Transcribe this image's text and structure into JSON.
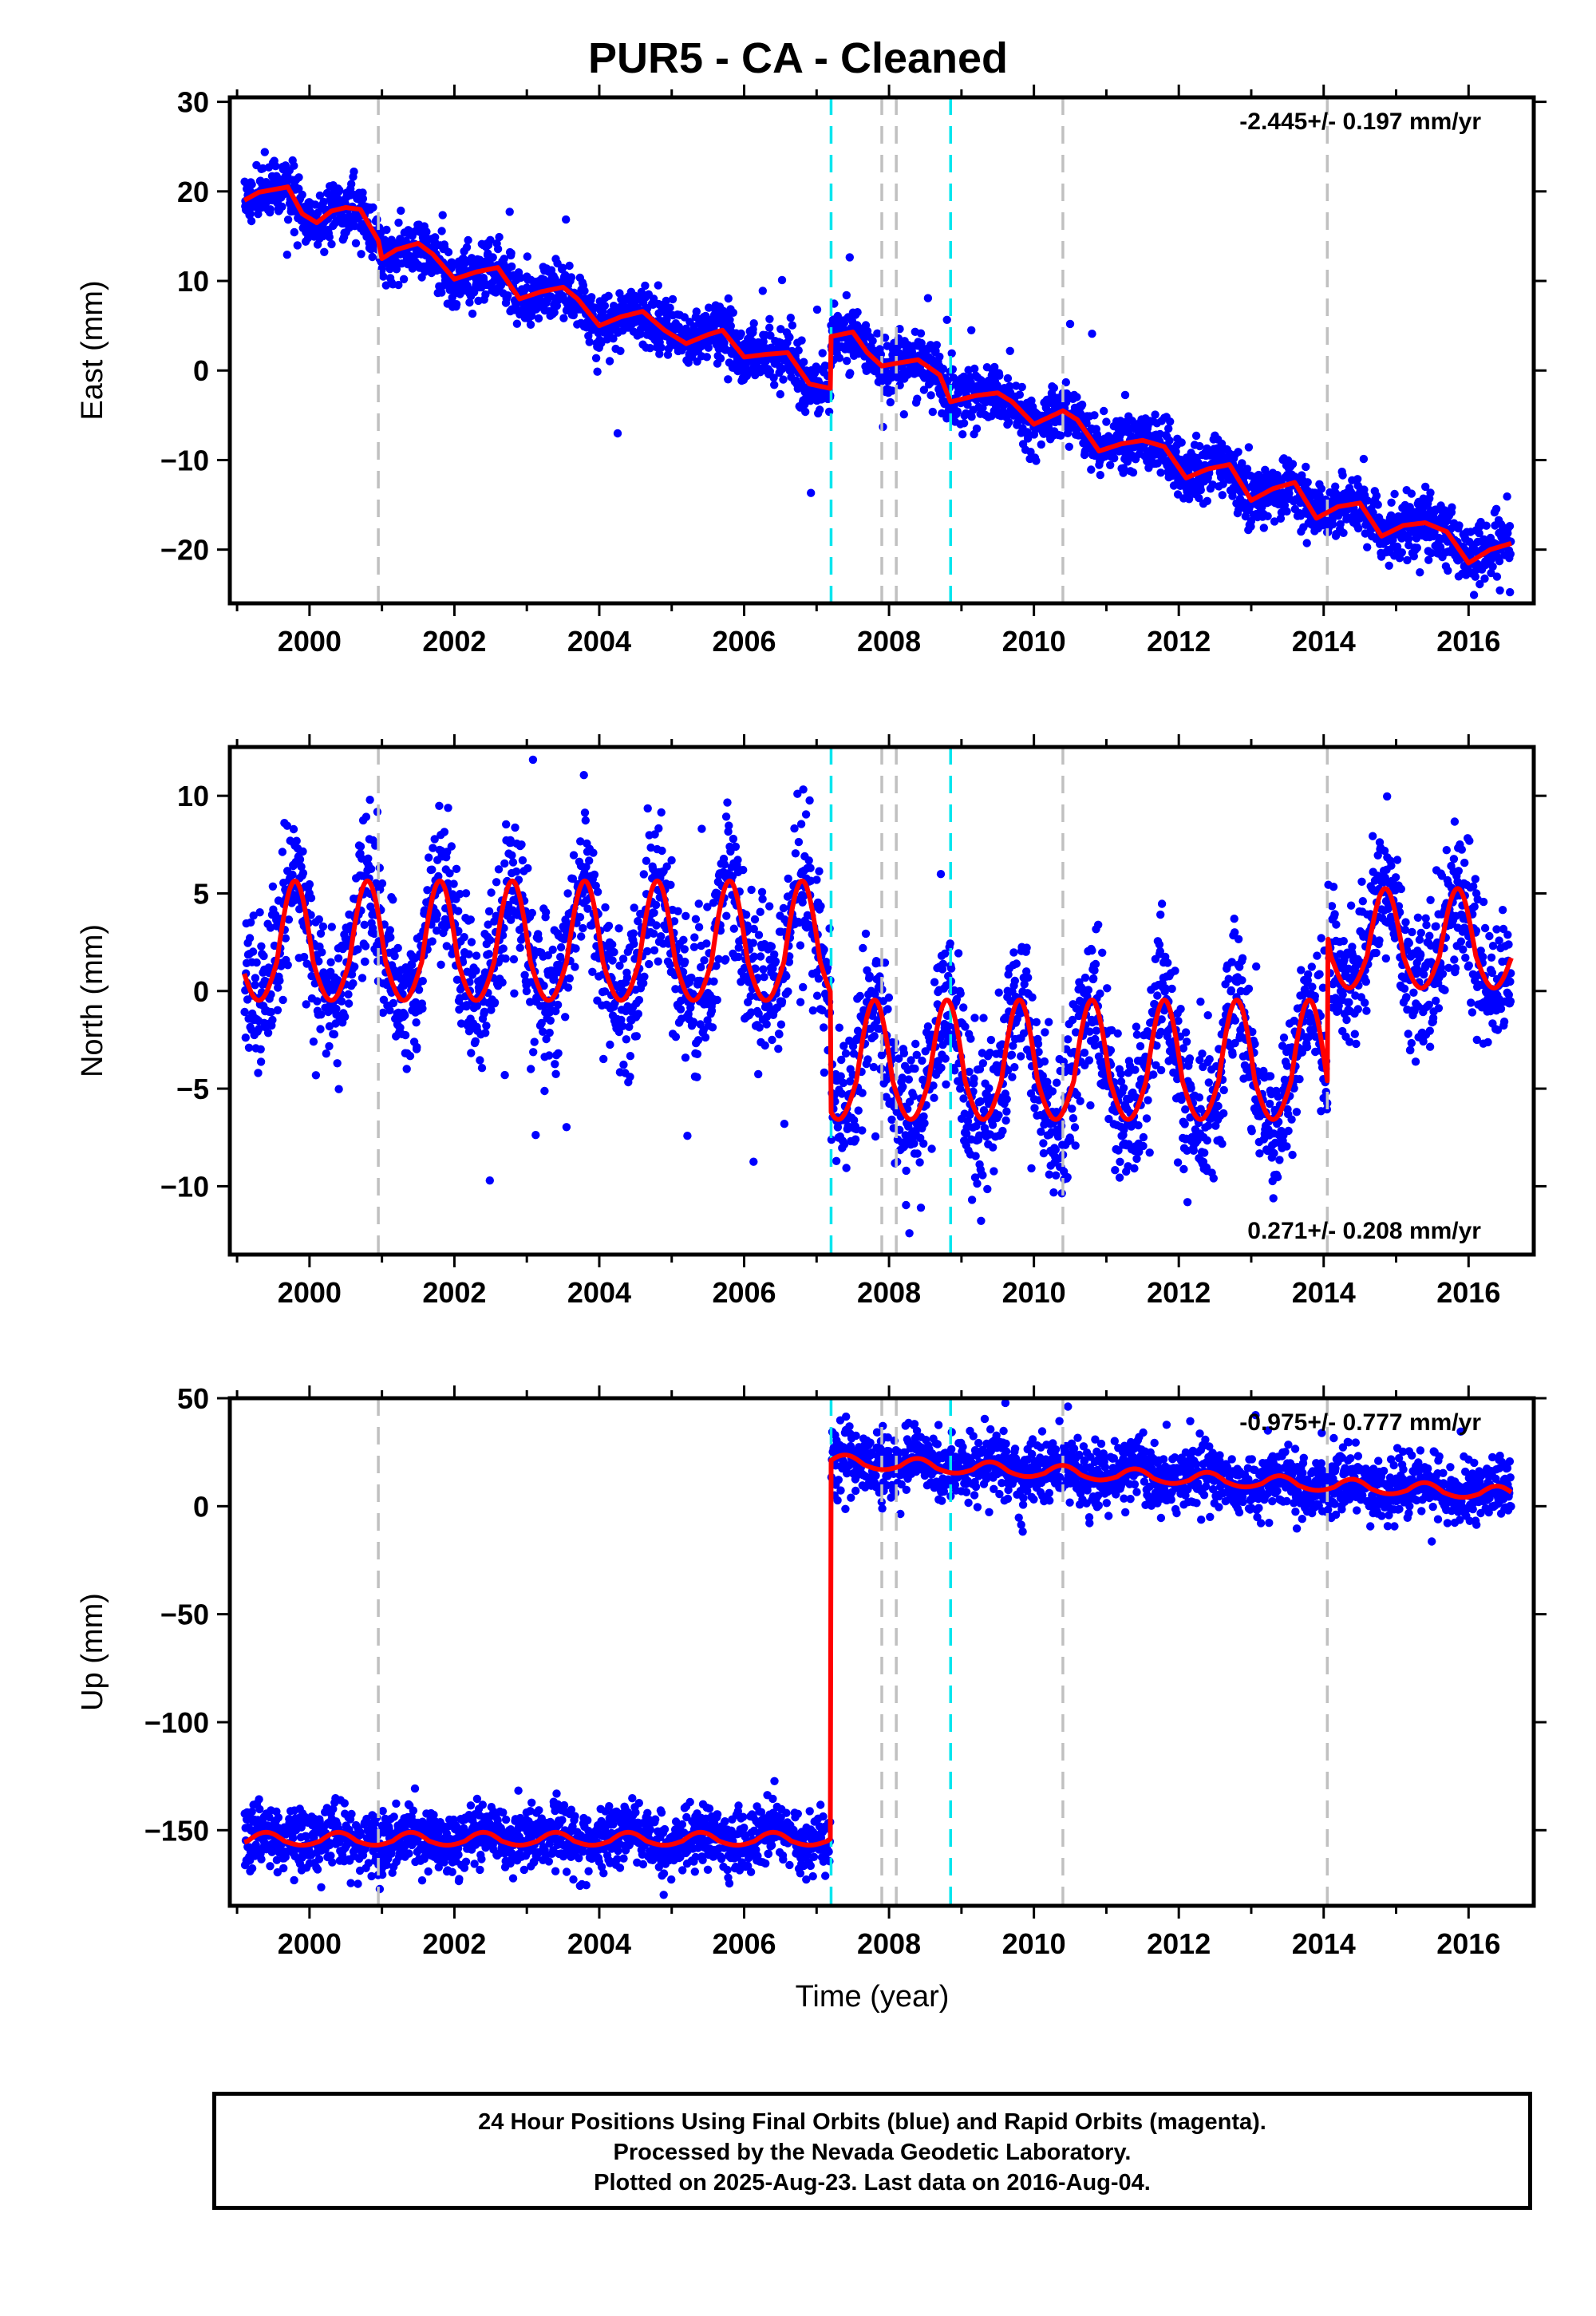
{
  "title": "PUR5  - CA - Cleaned",
  "xlabel": "Time (year)",
  "colors": {
    "data": "#0000ff",
    "model": "#ff0000",
    "offset_equipment": "#c0c0c0",
    "offset_event": "#00e5ee",
    "axes": "#000000"
  },
  "footer": {
    "line1": "24 Hour Positions Using Final Orbits (blue) and Rapid Orbits (magenta).",
    "line2": "Processed by the Nevada Geodetic Laboratory.",
    "line3": "Plotted on 2025-Aug-23. Last data on 2016-Aug-04."
  },
  "chart_data": [
    {
      "type": "scatter",
      "ylabel": "East (mm)",
      "rate_label": "-2.445+/- 0.197 mm/yr",
      "xlim": [
        1998.9,
        2016.9
      ],
      "ylim": [
        -26,
        30.5
      ],
      "xticks": [
        2000,
        2002,
        2004,
        2006,
        2008,
        2010,
        2012,
        2014,
        2016
      ],
      "yticks": [
        -20,
        -10,
        0,
        10,
        20,
        30
      ],
      "offsets_gray": [
        2000.95,
        2007.9,
        2008.1,
        2010.4,
        2014.05
      ],
      "offsets_cyan": [
        2007.2,
        2008.85
      ],
      "model": {
        "x": [
          1999.1,
          1999.3,
          1999.5,
          1999.7,
          1999.9,
          2000.1,
          2000.3,
          2000.5,
          2000.7,
          2000.95,
          2001.0,
          2001.2,
          2001.5,
          2001.7,
          2002.0,
          2002.3,
          2002.6,
          2002.9,
          2003.2,
          2003.5,
          2003.7,
          2004.0,
          2004.3,
          2004.6,
          2004.9,
          2005.2,
          2005.5,
          2005.7,
          2006.0,
          2006.3,
          2006.6,
          2006.9,
          2007.19,
          2007.2,
          2007.5,
          2007.7,
          2007.9,
          2008.1,
          2008.4,
          2008.7,
          2008.85,
          2009.2,
          2009.5,
          2009.7,
          2010.0,
          2010.4,
          2010.6,
          2010.9,
          2011.2,
          2011.5,
          2011.8,
          2012.1,
          2012.4,
          2012.7,
          2013.0,
          2013.3,
          2013.6,
          2013.9,
          2014.2,
          2014.5,
          2014.8,
          2015.1,
          2015.4,
          2015.7,
          2016.0,
          2016.3,
          2016.59
        ],
        "y": [
          19.0,
          19.9,
          20.2,
          20.5,
          17.5,
          16.5,
          17.8,
          18.2,
          18.0,
          14.5,
          12.5,
          13.5,
          14.2,
          13.0,
          10.2,
          11.0,
          11.5,
          8.0,
          8.8,
          9.3,
          8.0,
          5.0,
          6.0,
          6.6,
          4.5,
          3.0,
          4.0,
          4.5,
          1.5,
          1.8,
          2.0,
          -1.5,
          -2.0,
          3.8,
          4.3,
          2.0,
          0.5,
          0.8,
          1.2,
          -0.5,
          -3.5,
          -2.8,
          -2.5,
          -3.5,
          -6.0,
          -4.5,
          -5.5,
          -9.0,
          -8.2,
          -7.8,
          -8.5,
          -12.0,
          -11.0,
          -10.5,
          -14.5,
          -13.2,
          -12.5,
          -16.5,
          -15.2,
          -14.8,
          -18.5,
          -17.3,
          -17.0,
          -18.0,
          -21.5,
          -20.0,
          -19.3
        ]
      },
      "scatter_seed": 11,
      "scatter_spread": 1.6
    },
    {
      "type": "scatter",
      "ylabel": "North (mm)",
      "rate_label": "0.271+/- 0.208 mm/yr",
      "xlim": [
        1998.9,
        2016.9
      ],
      "ylim": [
        -13.5,
        12.5
      ],
      "xticks": [
        2000,
        2002,
        2004,
        2006,
        2008,
        2010,
        2012,
        2014,
        2016
      ],
      "yticks": [
        -10,
        -5,
        0,
        5,
        10
      ],
      "offsets_gray": [
        2000.95,
        2007.9,
        2008.1,
        2010.4,
        2014.05
      ],
      "offsets_cyan": [
        2007.2,
        2008.85
      ],
      "model": {
        "seasonal": true,
        "segments": [
          {
            "x0": 1999.1,
            "x1": 2007.19,
            "base": 1.5,
            "amp": 3.6,
            "phase": 0.55
          },
          {
            "x0": 2007.2,
            "x1": 2014.05,
            "base": -4.6,
            "amp": 3.6,
            "phase": 0.55
          },
          {
            "x0": 2014.06,
            "x1": 2016.59,
            "base": 1.8,
            "amp": 3.0,
            "phase": 0.6
          }
        ]
      },
      "scatter_seed": 23,
      "scatter_spread": 1.8
    },
    {
      "type": "scatter",
      "ylabel": "Up (mm)",
      "rate_label": "-0.975+/- 0.777 mm/yr",
      "xlim": [
        1998.9,
        2016.9
      ],
      "ylim": [
        -185,
        50
      ],
      "xticks": [
        2000,
        2002,
        2004,
        2006,
        2008,
        2010,
        2012,
        2014,
        2016
      ],
      "yticks": [
        -150,
        -100,
        -50,
        0,
        50
      ],
      "offsets_gray": [
        2000.95,
        2007.9,
        2008.1,
        2010.4,
        2014.05
      ],
      "offsets_cyan": [
        2007.2,
        2008.85
      ],
      "model": {
        "seasonal": true,
        "segments": [
          {
            "x0": 1999.1,
            "x1": 2007.19,
            "base": -155,
            "amp": 3.5,
            "phase": 0.15
          },
          {
            "x0": 2007.2,
            "x1": 2016.59,
            "base": 20,
            "amp": 3.5,
            "phase": 0.15,
            "slope": -1.6
          }
        ]
      },
      "scatter_seed": 37,
      "scatter_spread": 7.0
    }
  ]
}
